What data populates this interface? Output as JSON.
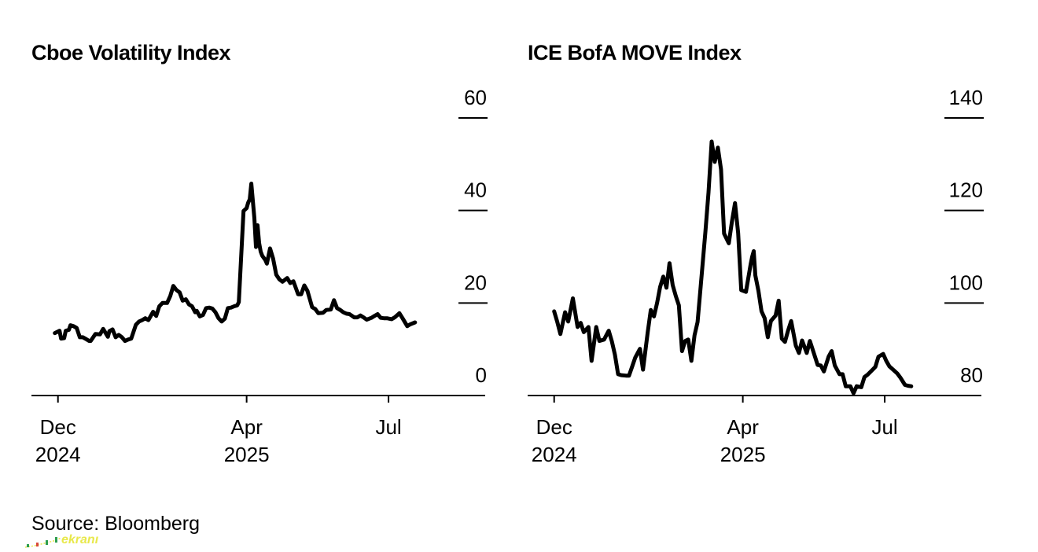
{
  "chart_data": [
    {
      "type": "line",
      "title": "Cboe Volatility Index",
      "xlabel": "",
      "ylabel": "",
      "y_ticks": [
        "0",
        "20",
        "40",
        "60"
      ],
      "ylim": [
        0,
        60
      ],
      "x_ticks": [
        {
          "date": "2024-12-01",
          "label_line1": "Dec",
          "label_line2": "2024"
        },
        {
          "date": "2025-04-01",
          "label_line1": "Apr",
          "label_line2": "2025"
        },
        {
          "date": "2025-07-01",
          "label_line1": "Jul",
          "label_line2": ""
        }
      ],
      "xlim": [
        "2024-11-14",
        "2025-09-01"
      ],
      "grid": "horizontal tick lines at labeled values",
      "series": [
        {
          "color": "#000000",
          "x": [
            "2024-11-29",
            "2024-12-02",
            "2024-12-03",
            "2024-12-05",
            "2024-12-06",
            "2024-12-08",
            "2024-12-09",
            "2024-12-11",
            "2024-12-13",
            "2024-12-15",
            "2024-12-17",
            "2024-12-19",
            "2024-12-21",
            "2024-12-22",
            "2024-12-25",
            "2024-12-28",
            "2024-12-30",
            "2025-01-02",
            "2025-01-03",
            "2025-01-05",
            "2025-01-07",
            "2025-01-09",
            "2025-01-11",
            "2025-01-13",
            "2025-01-15",
            "2025-01-17",
            "2025-01-20",
            "2025-01-22",
            "2025-01-24",
            "2025-01-26",
            "2025-01-28",
            "2025-01-31",
            "2025-02-02",
            "2025-02-04",
            "2025-02-06",
            "2025-02-09",
            "2025-02-11",
            "2025-02-13",
            "2025-02-15",
            "2025-02-17",
            "2025-02-19",
            "2025-02-21",
            "2025-02-23",
            "2025-02-25",
            "2025-02-27",
            "2025-02-28",
            "2025-03-02",
            "2025-03-04",
            "2025-03-06",
            "2025-03-08",
            "2025-03-10",
            "2025-03-12",
            "2025-03-14",
            "2025-03-16",
            "2025-03-18",
            "2025-03-20",
            "2025-03-22",
            "2025-03-24",
            "2025-03-26",
            "2025-03-27",
            "2025-03-30",
            "2025-04-01",
            "2025-04-02",
            "2025-04-03",
            "2025-04-04",
            "2025-04-06",
            "2025-04-07",
            "2025-04-08",
            "2025-04-09",
            "2025-04-10",
            "2025-04-11",
            "2025-04-13",
            "2025-04-14",
            "2025-04-16",
            "2025-04-18",
            "2025-04-20",
            "2025-04-22",
            "2025-04-24",
            "2025-04-27",
            "2025-04-29",
            "2025-05-01",
            "2025-05-04",
            "2025-05-06",
            "2025-05-08",
            "2025-05-10",
            "2025-05-13",
            "2025-05-15",
            "2025-05-17",
            "2025-05-20",
            "2025-05-22",
            "2025-05-25",
            "2025-05-27",
            "2025-05-29",
            "2025-05-31",
            "2025-06-02",
            "2025-06-04",
            "2025-06-06",
            "2025-06-09",
            "2025-06-11",
            "2025-06-13",
            "2025-06-15",
            "2025-06-17",
            "2025-06-20",
            "2025-06-22",
            "2025-06-24",
            "2025-06-26",
            "2025-06-28",
            "2025-06-30",
            "2025-07-03",
            "2025-07-05",
            "2025-07-08",
            "2025-07-10",
            "2025-07-13",
            "2025-07-15",
            "2025-07-18"
          ],
          "y": [
            13.5,
            14.0,
            12.3,
            12.4,
            14.0,
            14.2,
            15.2,
            15.0,
            14.6,
            12.6,
            12.6,
            12.2,
            11.8,
            11.8,
            13.3,
            13.2,
            14.4,
            12.7,
            13.9,
            14.3,
            12.6,
            13.1,
            12.6,
            11.8,
            12.1,
            12.3,
            15.3,
            16.0,
            16.3,
            16.7,
            16.3,
            18.1,
            17.2,
            19.3,
            20.0,
            20.0,
            21.5,
            23.7,
            22.8,
            22.3,
            20.5,
            20.8,
            19.7,
            19.3,
            18.0,
            18.3,
            17.1,
            17.4,
            18.9,
            19.0,
            18.8,
            18.0,
            16.7,
            16.0,
            16.6,
            18.9,
            19.0,
            19.3,
            19.5,
            20.2,
            39.9,
            40.5,
            41.7,
            42.4,
            45.8,
            38.3,
            32.1,
            36.8,
            33.0,
            31.1,
            30.2,
            29.3,
            28.5,
            31.8,
            29.6,
            26.1,
            25.1,
            24.6,
            25.4,
            24.3,
            24.7,
            21.9,
            21.9,
            23.8,
            22.6,
            19.1,
            18.7,
            17.8,
            17.9,
            18.5,
            18.6,
            20.6,
            18.9,
            18.5,
            18.0,
            17.7,
            17.6,
            16.9,
            16.9,
            17.3,
            16.9,
            16.4,
            16.8,
            17.2,
            17.6,
            16.8,
            16.7,
            16.7,
            16.5,
            16.9,
            17.8,
            16.7,
            15.0,
            15.4,
            15.8
          ]
        }
      ]
    },
    {
      "type": "line",
      "title": "ICE BofA MOVE Index",
      "xlabel": "",
      "ylabel": "",
      "y_ticks": [
        "80",
        "100",
        "120",
        "140"
      ],
      "ylim": [
        80,
        140
      ],
      "x_ticks": [
        {
          "date": "2024-12-01",
          "label_line1": "Dec",
          "label_line2": "2024"
        },
        {
          "date": "2025-04-01",
          "label_line1": "Apr",
          "label_line2": "2025"
        },
        {
          "date": "2025-07-01",
          "label_line1": "Jul",
          "label_line2": ""
        }
      ],
      "xlim": [
        "2024-11-14",
        "2025-09-01"
      ],
      "grid": "horizontal tick lines at labeled values",
      "series": [
        {
          "color": "#000000",
          "x": [
            "2024-12-01",
            "2024-12-03",
            "2024-12-05",
            "2024-12-08",
            "2024-12-10",
            "2024-12-13",
            "2024-12-16",
            "2024-12-18",
            "2024-12-20",
            "2024-12-23",
            "2024-12-25",
            "2024-12-28",
            "2024-12-30",
            "2025-01-02",
            "2025-01-05",
            "2025-01-07",
            "2025-01-09",
            "2025-01-11",
            "2025-01-13",
            "2025-01-16",
            "2025-01-18",
            "2025-01-20",
            "2025-01-22",
            "2025-01-25",
            "2025-01-27",
            "2025-01-30",
            "2025-02-01",
            "2025-02-03",
            "2025-02-05",
            "2025-02-07",
            "2025-02-09",
            "2025-02-11",
            "2025-02-13",
            "2025-02-15",
            "2025-02-17",
            "2025-02-19",
            "2025-02-21",
            "2025-02-23",
            "2025-02-25",
            "2025-02-27",
            "2025-03-01",
            "2025-03-03",
            "2025-03-05",
            "2025-03-08",
            "2025-03-10",
            "2025-03-12",
            "2025-03-14",
            "2025-03-16",
            "2025-03-18",
            "2025-03-20",
            "2025-03-23",
            "2025-03-25",
            "2025-03-27",
            "2025-03-29",
            "2025-03-31",
            "2025-04-03",
            "2025-04-06",
            "2025-04-07",
            "2025-04-08",
            "2025-04-09",
            "2025-04-11",
            "2025-04-13",
            "2025-04-15",
            "2025-04-17",
            "2025-04-19",
            "2025-04-22",
            "2025-04-24",
            "2025-04-26",
            "2025-04-28",
            "2025-04-30",
            "2025-05-02",
            "2025-05-05",
            "2025-05-07",
            "2025-05-09",
            "2025-05-12",
            "2025-05-14",
            "2025-05-16",
            "2025-05-19",
            "2025-05-21",
            "2025-05-23",
            "2025-05-26",
            "2025-05-28",
            "2025-05-30",
            "2025-06-02",
            "2025-06-04",
            "2025-06-06",
            "2025-06-09",
            "2025-06-11",
            "2025-06-13",
            "2025-06-16",
            "2025-06-18",
            "2025-06-20",
            "2025-06-23",
            "2025-06-25",
            "2025-06-27",
            "2025-06-30",
            "2025-07-02",
            "2025-07-04",
            "2025-07-07",
            "2025-07-09",
            "2025-07-11",
            "2025-07-14",
            "2025-07-16",
            "2025-07-18"
          ],
          "y": [
            98.2,
            95.9,
            93.3,
            98.0,
            96.0,
            101.0,
            94.8,
            95.7,
            93.7,
            94.8,
            87.5,
            94.8,
            91.8,
            92.1,
            94.0,
            91.7,
            88.8,
            84.6,
            84.4,
            84.3,
            84.3,
            86.2,
            88.2,
            90.1,
            85.6,
            93.7,
            98.5,
            97.1,
            100.0,
            103.5,
            105.7,
            103.3,
            108.6,
            103.9,
            101.5,
            99.5,
            89.6,
            91.8,
            92.1,
            87.5,
            93.0,
            95.9,
            103.7,
            115.3,
            123.9,
            134.9,
            130.5,
            133.6,
            128.9,
            115.0,
            112.9,
            117.5,
            121.6,
            115.1,
            102.8,
            102.4,
            108.3,
            110.0,
            111.2,
            106.0,
            102.6,
            98.2,
            96.7,
            92.6,
            96.1,
            97.3,
            100.5,
            92.3,
            91.6,
            94.0,
            96.1,
            90.8,
            89.2,
            91.9,
            89.2,
            91.8,
            89.7,
            86.6,
            86.5,
            85.2,
            88.4,
            89.6,
            86.5,
            84.6,
            84.6,
            82.0,
            82.0,
            80.5,
            82.0,
            81.8,
            84.0,
            84.5,
            85.5,
            86.2,
            88.4,
            89.0,
            87.5,
            86.3,
            85.4,
            84.8,
            83.9,
            82.3,
            82.1,
            82.0
          ]
        }
      ]
    }
  ],
  "source": "Source: Bloomberg",
  "watermark_text": "ekranı"
}
